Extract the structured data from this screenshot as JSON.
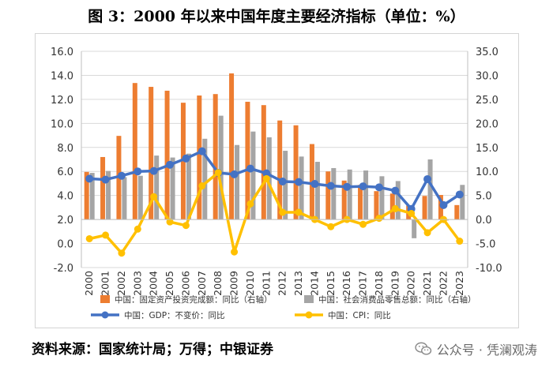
{
  "title": "图 3：2000 年以来中国年度主要经济指标（单位：%）",
  "source": "资料来源：国家统计局；万得；中银证券",
  "watermark": {
    "text": "公众号 · 凭澜观涛",
    "icon": "wechat-icon"
  },
  "chart_data": {
    "type": "bar-line-combo",
    "categories": [
      "2000",
      "2001",
      "2002",
      "2003",
      "2004",
      "2005",
      "2006",
      "2007",
      "2008",
      "2009",
      "2010",
      "2011",
      "2012",
      "2013",
      "2014",
      "2015",
      "2016",
      "2017",
      "2018",
      "2019",
      "2020",
      "2021",
      "2022",
      "2023"
    ],
    "left_axis": {
      "min": -2,
      "max": 16,
      "step": 2,
      "ticks": [
        "-2.0",
        "0.0",
        "2.0",
        "4.0",
        "6.0",
        "8.0",
        "10.0",
        "12.0",
        "14.0",
        "16.0"
      ]
    },
    "right_axis": {
      "min": -10,
      "max": 35,
      "step": 5,
      "ticks": [
        "-10.0",
        "-5.0",
        "0.0",
        "5.0",
        "10.0",
        "15.0",
        "20.0",
        "25.0",
        "30.0",
        "35.0"
      ]
    },
    "grid": true,
    "legend_position": "bottom",
    "series": [
      {
        "name": "中国：固定资产投资完成额：同比（右轴）",
        "type": "bar",
        "axis": "right",
        "color": "#ED7D31",
        "values": [
          9.9,
          13.0,
          17.4,
          28.4,
          27.6,
          26.8,
          24.3,
          25.8,
          26.1,
          30.4,
          24.5,
          23.8,
          20.6,
          19.6,
          15.7,
          10.0,
          8.1,
          7.2,
          5.9,
          5.4,
          2.9,
          4.9,
          5.1,
          3.0
        ]
      },
      {
        "name": "中国：社会消费品零售总额：同比（右轴）",
        "type": "bar",
        "axis": "right",
        "color": "#A5A5A5",
        "values": [
          9.7,
          10.1,
          8.8,
          9.1,
          13.3,
          12.9,
          13.7,
          16.8,
          21.6,
          15.5,
          18.3,
          17.1,
          14.3,
          13.1,
          12.0,
          10.7,
          10.4,
          10.2,
          9.0,
          8.0,
          -3.9,
          12.5,
          -0.2,
          7.2
        ]
      },
      {
        "name": "中国：GDP：不变价：同比",
        "type": "line",
        "axis": "right",
        "color": "#4472C4",
        "values": [
          8.5,
          8.3,
          9.1,
          10.0,
          10.1,
          11.4,
          12.7,
          14.2,
          9.7,
          9.4,
          10.6,
          9.6,
          7.9,
          7.8,
          7.4,
          7.0,
          6.8,
          6.9,
          6.7,
          6.0,
          2.2,
          8.4,
          3.0,
          5.2
        ]
      },
      {
        "name": "中国：CPI：同比",
        "type": "line",
        "axis": "left",
        "color": "#FFC000",
        "values": [
          0.4,
          0.7,
          -0.8,
          1.2,
          3.9,
          1.8,
          1.5,
          4.8,
          5.9,
          -0.7,
          3.3,
          5.4,
          2.6,
          2.6,
          2.0,
          1.4,
          2.0,
          1.6,
          2.1,
          2.9,
          2.5,
          0.9,
          2.0,
          0.2
        ]
      }
    ]
  }
}
